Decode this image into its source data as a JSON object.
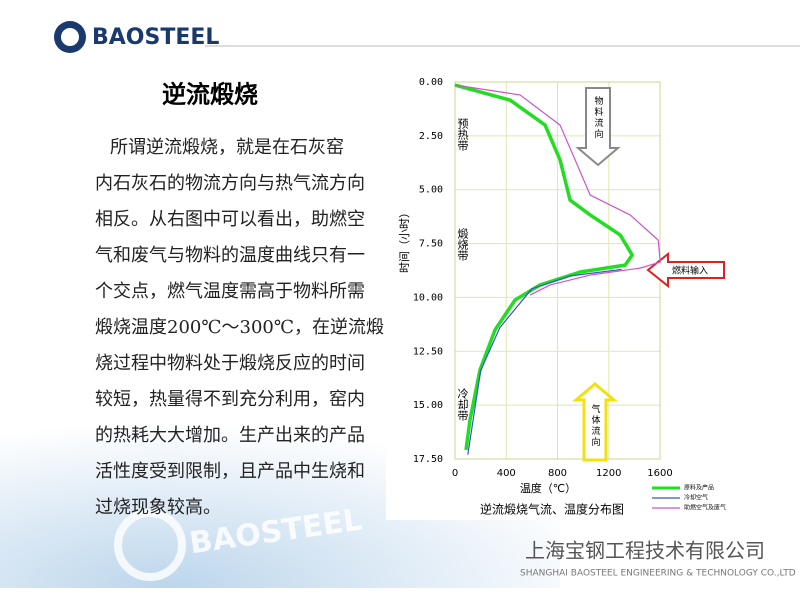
{
  "header": {
    "logo": "BAOSTEEL"
  },
  "title": "逆流煅烧",
  "paragraph": [
    "所谓逆流煅烧，就是在石灰窑",
    "内石灰石的物流方向与热气流方向",
    "相反。从右图中可以看出，助燃空",
    "气和废气与物料的温度曲线只有一",
    "个交点，燃气温度需高于物料所需",
    "煅烧温度200℃～300℃，在逆流煅",
    "烧过程中物料处于煅烧反应的时间",
    "较短，热量得不到充分利用，窑内",
    "的热耗大大增加。生产出来的产品",
    "活性度受到限制，且产品中生烧和",
    "过烧现象较高。"
  ],
  "chart_data": {
    "type": "line",
    "title": "逆流煅烧气流、温度分布图",
    "x_label": "温度（℃）",
    "y_label": "时间（小时）",
    "xlim": [
      0,
      1600
    ],
    "xticks": [
      0,
      400,
      800,
      1200,
      1600
    ],
    "ylim": [
      0,
      17.5
    ],
    "y_inverted": true,
    "yticks": [
      {
        "value": 0,
        "label": "0.00"
      },
      {
        "value": 2.5,
        "label": "2.50"
      },
      {
        "value": 5,
        "label": "5.00"
      },
      {
        "value": 7.5,
        "label": "7.50"
      },
      {
        "value": 10,
        "label": "10.00"
      },
      {
        "value": 12.5,
        "label": "12.50"
      },
      {
        "value": 15,
        "label": "15.00"
      },
      {
        "value": 17.5,
        "label": "17.50"
      }
    ],
    "grid": true,
    "series": [
      {
        "name": "原料及产品",
        "color": "#22dd22",
        "x": [
          0,
          430,
          703,
          820,
          898,
          1055,
          1289,
          1383,
          1328,
          977,
          664,
          469,
          313,
          195,
          117,
          86
        ],
        "y": [
          0.14,
          0.84,
          2.0,
          3.62,
          5.48,
          6.17,
          7.1,
          8.03,
          8.5,
          8.82,
          9.42,
          10.12,
          11.5,
          13.37,
          15.69,
          17.08
        ]
      },
      {
        "name": "冷却空气",
        "color": "#3355cc",
        "x": [
          100,
          200,
          350,
          600,
          900,
          1300
        ],
        "y": [
          17.3,
          13.4,
          11.4,
          9.6,
          9.0,
          8.7
        ]
      },
      {
        "name": "助燃空气及废气",
        "color": "#cc55cc",
        "x": [
          0,
          508,
          820,
          938,
          1055,
          1367,
          1586,
          1602,
          1445,
          1055,
          742,
          586
        ],
        "y": [
          0.14,
          0.6,
          2.0,
          3.62,
          5.25,
          6.17,
          7.34,
          8.36,
          8.64,
          8.96,
          9.42,
          9.89
        ]
      }
    ],
    "annotations": {
      "zones": [
        "预热带",
        "煅烧带",
        "冷却带"
      ],
      "material_flow": "物料流向",
      "gas_flow": "气体流向",
      "fuel_input": "燃料输入"
    }
  },
  "footer": {
    "company": "上海宝钢工程技术有限公司",
    "company_en": "SHANGHAI BAOSTEEL ENGINEERING & TECHNOLOGY CO.,LTD",
    "watermark": "BAOSTEEL"
  }
}
